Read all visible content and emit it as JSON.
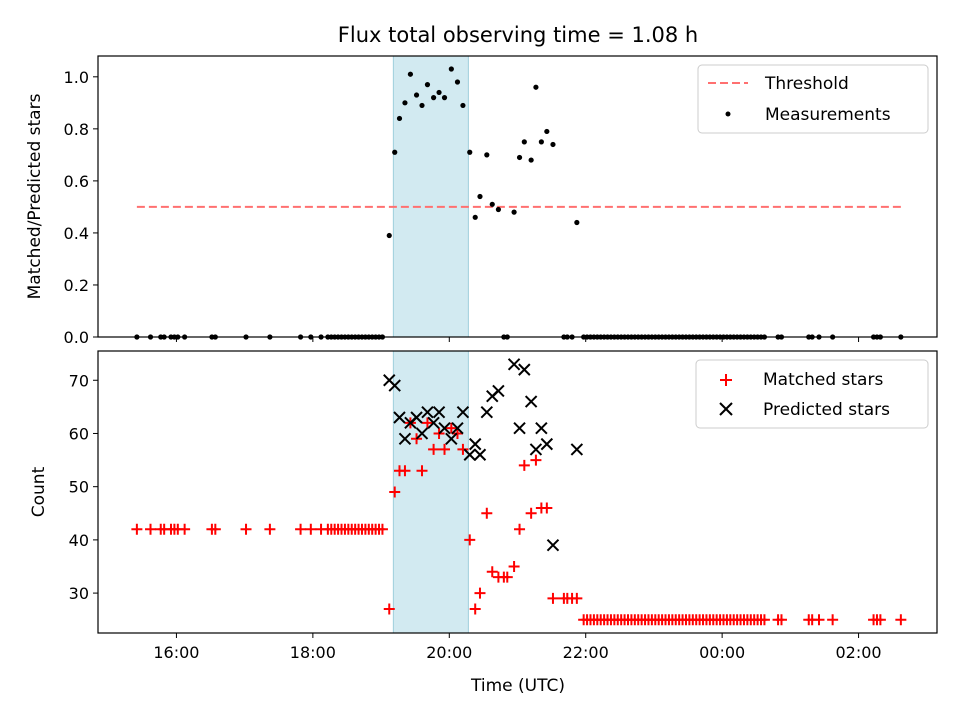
{
  "chart_data": [
    {
      "type": "scatter",
      "title": "Flux total observing time = 1.08 h",
      "xlabel": "",
      "ylabel": "Matched/Predicted stars",
      "x_axis_unit": "hours UTC (continuing past midnight)",
      "xlim": [
        14.85,
        27.15
      ],
      "ylim": [
        0.0,
        1.08
      ],
      "yticks": [
        0.0,
        0.2,
        0.4,
        0.6,
        0.8,
        1.0
      ],
      "yticklabels": [
        "0.0",
        "0.2",
        "0.4",
        "0.6",
        "0.8",
        "1.0"
      ],
      "legend_position": "upper right",
      "span": {
        "x0": 19.18,
        "x1": 20.28,
        "color": "#add8e6"
      },
      "series": [
        {
          "name": "Threshold",
          "kind": "line",
          "style": "dashed",
          "color": "#ff7070",
          "x": [
            15.42,
            26.62
          ],
          "y": [
            0.5,
            0.5
          ]
        },
        {
          "name": "Measurements",
          "kind": "scatter",
          "marker": "dot",
          "color": "#000000",
          "x": [
            15.42,
            15.62,
            15.77,
            15.82,
            15.92,
            15.97,
            16.02,
            16.12,
            16.52,
            16.57,
            17.02,
            17.37,
            17.82,
            17.97,
            18.12,
            18.22,
            18.27,
            18.32,
            18.37,
            18.42,
            18.47,
            18.52,
            18.57,
            18.62,
            18.67,
            18.72,
            18.77,
            18.82,
            18.87,
            18.92,
            18.97,
            19.02,
            19.12,
            19.2,
            19.27,
            19.35,
            19.43,
            19.52,
            19.6,
            19.68,
            19.77,
            19.85,
            19.93,
            20.03,
            20.12,
            20.2,
            20.3,
            20.38,
            20.45,
            20.55,
            20.63,
            20.72,
            20.8,
            20.85,
            20.95,
            21.03,
            21.1,
            21.2,
            21.27,
            21.35,
            21.43,
            21.52,
            21.68,
            21.73,
            21.8,
            21.87,
            21.97,
            22.02,
            22.07,
            22.12,
            22.17,
            22.22,
            22.27,
            22.32,
            22.37,
            22.42,
            22.47,
            22.52,
            22.57,
            22.62,
            22.67,
            22.72,
            22.77,
            22.82,
            22.87,
            22.92,
            22.97,
            23.02,
            23.07,
            23.12,
            23.17,
            23.22,
            23.27,
            23.32,
            23.37,
            23.42,
            23.47,
            23.52,
            23.57,
            23.62,
            23.67,
            23.72,
            23.77,
            23.82,
            23.87,
            23.92,
            23.97,
            24.02,
            24.07,
            24.12,
            24.17,
            24.22,
            24.27,
            24.32,
            24.37,
            24.42,
            24.47,
            24.52,
            24.57,
            24.62,
            24.82,
            24.87,
            25.27,
            25.32,
            25.42,
            25.62,
            26.22,
            26.27,
            26.32,
            26.62
          ],
          "y": [
            0,
            0,
            0,
            0,
            0,
            0,
            0,
            0,
            0,
            0,
            0,
            0,
            0,
            0,
            0,
            0,
            0,
            0,
            0,
            0,
            0,
            0,
            0,
            0,
            0,
            0,
            0,
            0,
            0,
            0,
            0,
            0,
            0.39,
            0.71,
            0.84,
            0.9,
            1.01,
            0.93,
            0.89,
            0.97,
            0.92,
            0.94,
            0.92,
            1.03,
            0.98,
            0.89,
            0.71,
            0.46,
            0.54,
            0.7,
            0.51,
            0.49,
            0,
            0,
            0.48,
            0.69,
            0.75,
            0.68,
            0.96,
            0.75,
            0.79,
            0.74,
            0,
            0,
            0,
            0.44,
            0,
            0,
            0,
            0,
            0,
            0,
            0,
            0,
            0,
            0,
            0,
            0,
            0,
            0,
            0,
            0,
            0,
            0,
            0,
            0,
            0,
            0,
            0,
            0,
            0,
            0,
            0,
            0,
            0,
            0,
            0,
            0,
            0,
            0,
            0,
            0,
            0,
            0,
            0,
            0,
            0,
            0,
            0,
            0,
            0,
            0,
            0,
            0,
            0,
            0,
            0,
            0,
            0,
            0,
            0,
            0,
            0,
            0,
            0,
            0,
            0,
            0,
            0,
            0
          ]
        }
      ]
    },
    {
      "type": "scatter",
      "title": "",
      "xlabel": "Time (UTC)",
      "ylabel": "Count",
      "x_axis_unit": "hours UTC (continuing past midnight)",
      "xlim": [
        14.85,
        27.15
      ],
      "xticks": [
        16,
        18,
        20,
        22,
        24,
        26
      ],
      "xticklabels": [
        "16:00",
        "18:00",
        "20:00",
        "22:00",
        "00:00",
        "02:00"
      ],
      "ylim": [
        22.5,
        75.5
      ],
      "yticks": [
        30,
        40,
        50,
        60,
        70
      ],
      "yticklabels": [
        "30",
        "40",
        "50",
        "60",
        "70"
      ],
      "legend_position": "upper right",
      "span": {
        "x0": 19.18,
        "x1": 20.28,
        "color": "#add8e6"
      },
      "series": [
        {
          "name": "Matched stars",
          "kind": "scatter",
          "marker": "plus",
          "color": "#ff0000",
          "x": [
            15.42,
            15.62,
            15.77,
            15.82,
            15.92,
            15.97,
            16.02,
            16.12,
            16.52,
            16.57,
            17.02,
            17.37,
            17.82,
            17.97,
            18.12,
            18.22,
            18.27,
            18.32,
            18.37,
            18.42,
            18.47,
            18.52,
            18.57,
            18.62,
            18.67,
            18.72,
            18.77,
            18.82,
            18.87,
            18.92,
            18.97,
            19.02,
            19.12,
            19.2,
            19.27,
            19.35,
            19.43,
            19.52,
            19.6,
            19.68,
            19.77,
            19.85,
            19.93,
            20.03,
            20.12,
            20.2,
            20.3,
            20.38,
            20.45,
            20.55,
            20.63,
            20.72,
            20.8,
            20.85,
            20.95,
            21.03,
            21.1,
            21.2,
            21.27,
            21.35,
            21.43,
            21.52,
            21.68,
            21.73,
            21.8,
            21.87,
            21.97,
            22.02,
            22.07,
            22.12,
            22.17,
            22.22,
            22.27,
            22.32,
            22.37,
            22.42,
            22.47,
            22.52,
            22.57,
            22.62,
            22.67,
            22.72,
            22.77,
            22.82,
            22.87,
            22.92,
            22.97,
            23.02,
            23.07,
            23.12,
            23.17,
            23.22,
            23.27,
            23.32,
            23.37,
            23.42,
            23.47,
            23.52,
            23.57,
            23.62,
            23.67,
            23.72,
            23.77,
            23.82,
            23.87,
            23.92,
            23.97,
            24.02,
            24.07,
            24.12,
            24.17,
            24.22,
            24.27,
            24.32,
            24.37,
            24.42,
            24.47,
            24.52,
            24.57,
            24.62,
            24.82,
            24.87,
            25.27,
            25.32,
            25.42,
            25.62,
            26.22,
            26.27,
            26.32,
            26.62
          ],
          "y": [
            42,
            42,
            42,
            42,
            42,
            42,
            42,
            42,
            42,
            42,
            42,
            42,
            42,
            42,
            42,
            42,
            42,
            42,
            42,
            42,
            42,
            42,
            42,
            42,
            42,
            42,
            42,
            42,
            42,
            42,
            42,
            42,
            27,
            49,
            53,
            53,
            62,
            59,
            53,
            62,
            57,
            60,
            57,
            61,
            60,
            57,
            40,
            27,
            30,
            45,
            34,
            33,
            33,
            33,
            35,
            42,
            54,
            45,
            55,
            46,
            46,
            29,
            29,
            29,
            29,
            29,
            25,
            25,
            25,
            25,
            25,
            25,
            25,
            25,
            25,
            25,
            25,
            25,
            25,
            25,
            25,
            25,
            25,
            25,
            25,
            25,
            25,
            25,
            25,
            25,
            25,
            25,
            25,
            25,
            25,
            25,
            25,
            25,
            25,
            25,
            25,
            25,
            25,
            25,
            25,
            25,
            25,
            25,
            25,
            25,
            25,
            25,
            25,
            25,
            25,
            25,
            25,
            25,
            25,
            25,
            25,
            25,
            25,
            25,
            25,
            25,
            25,
            25,
            25,
            25
          ]
        },
        {
          "name": "Predicted stars",
          "kind": "scatter",
          "marker": "x",
          "color": "#000000",
          "x": [
            19.12,
            19.2,
            19.27,
            19.35,
            19.43,
            19.52,
            19.6,
            19.68,
            19.77,
            19.85,
            19.93,
            20.03,
            20.12,
            20.2,
            20.3,
            20.38,
            20.45,
            20.55,
            20.63,
            20.72,
            20.95,
            21.03,
            21.1,
            21.2,
            21.27,
            21.35,
            21.43,
            21.52,
            21.87
          ],
          "y": [
            70,
            69,
            63,
            59,
            62,
            63,
            60,
            64,
            62,
            64,
            61,
            59,
            61,
            64,
            56,
            58,
            56,
            64,
            67,
            68,
            73,
            61,
            72,
            66,
            57,
            61,
            58,
            39,
            57
          ]
        }
      ]
    }
  ]
}
